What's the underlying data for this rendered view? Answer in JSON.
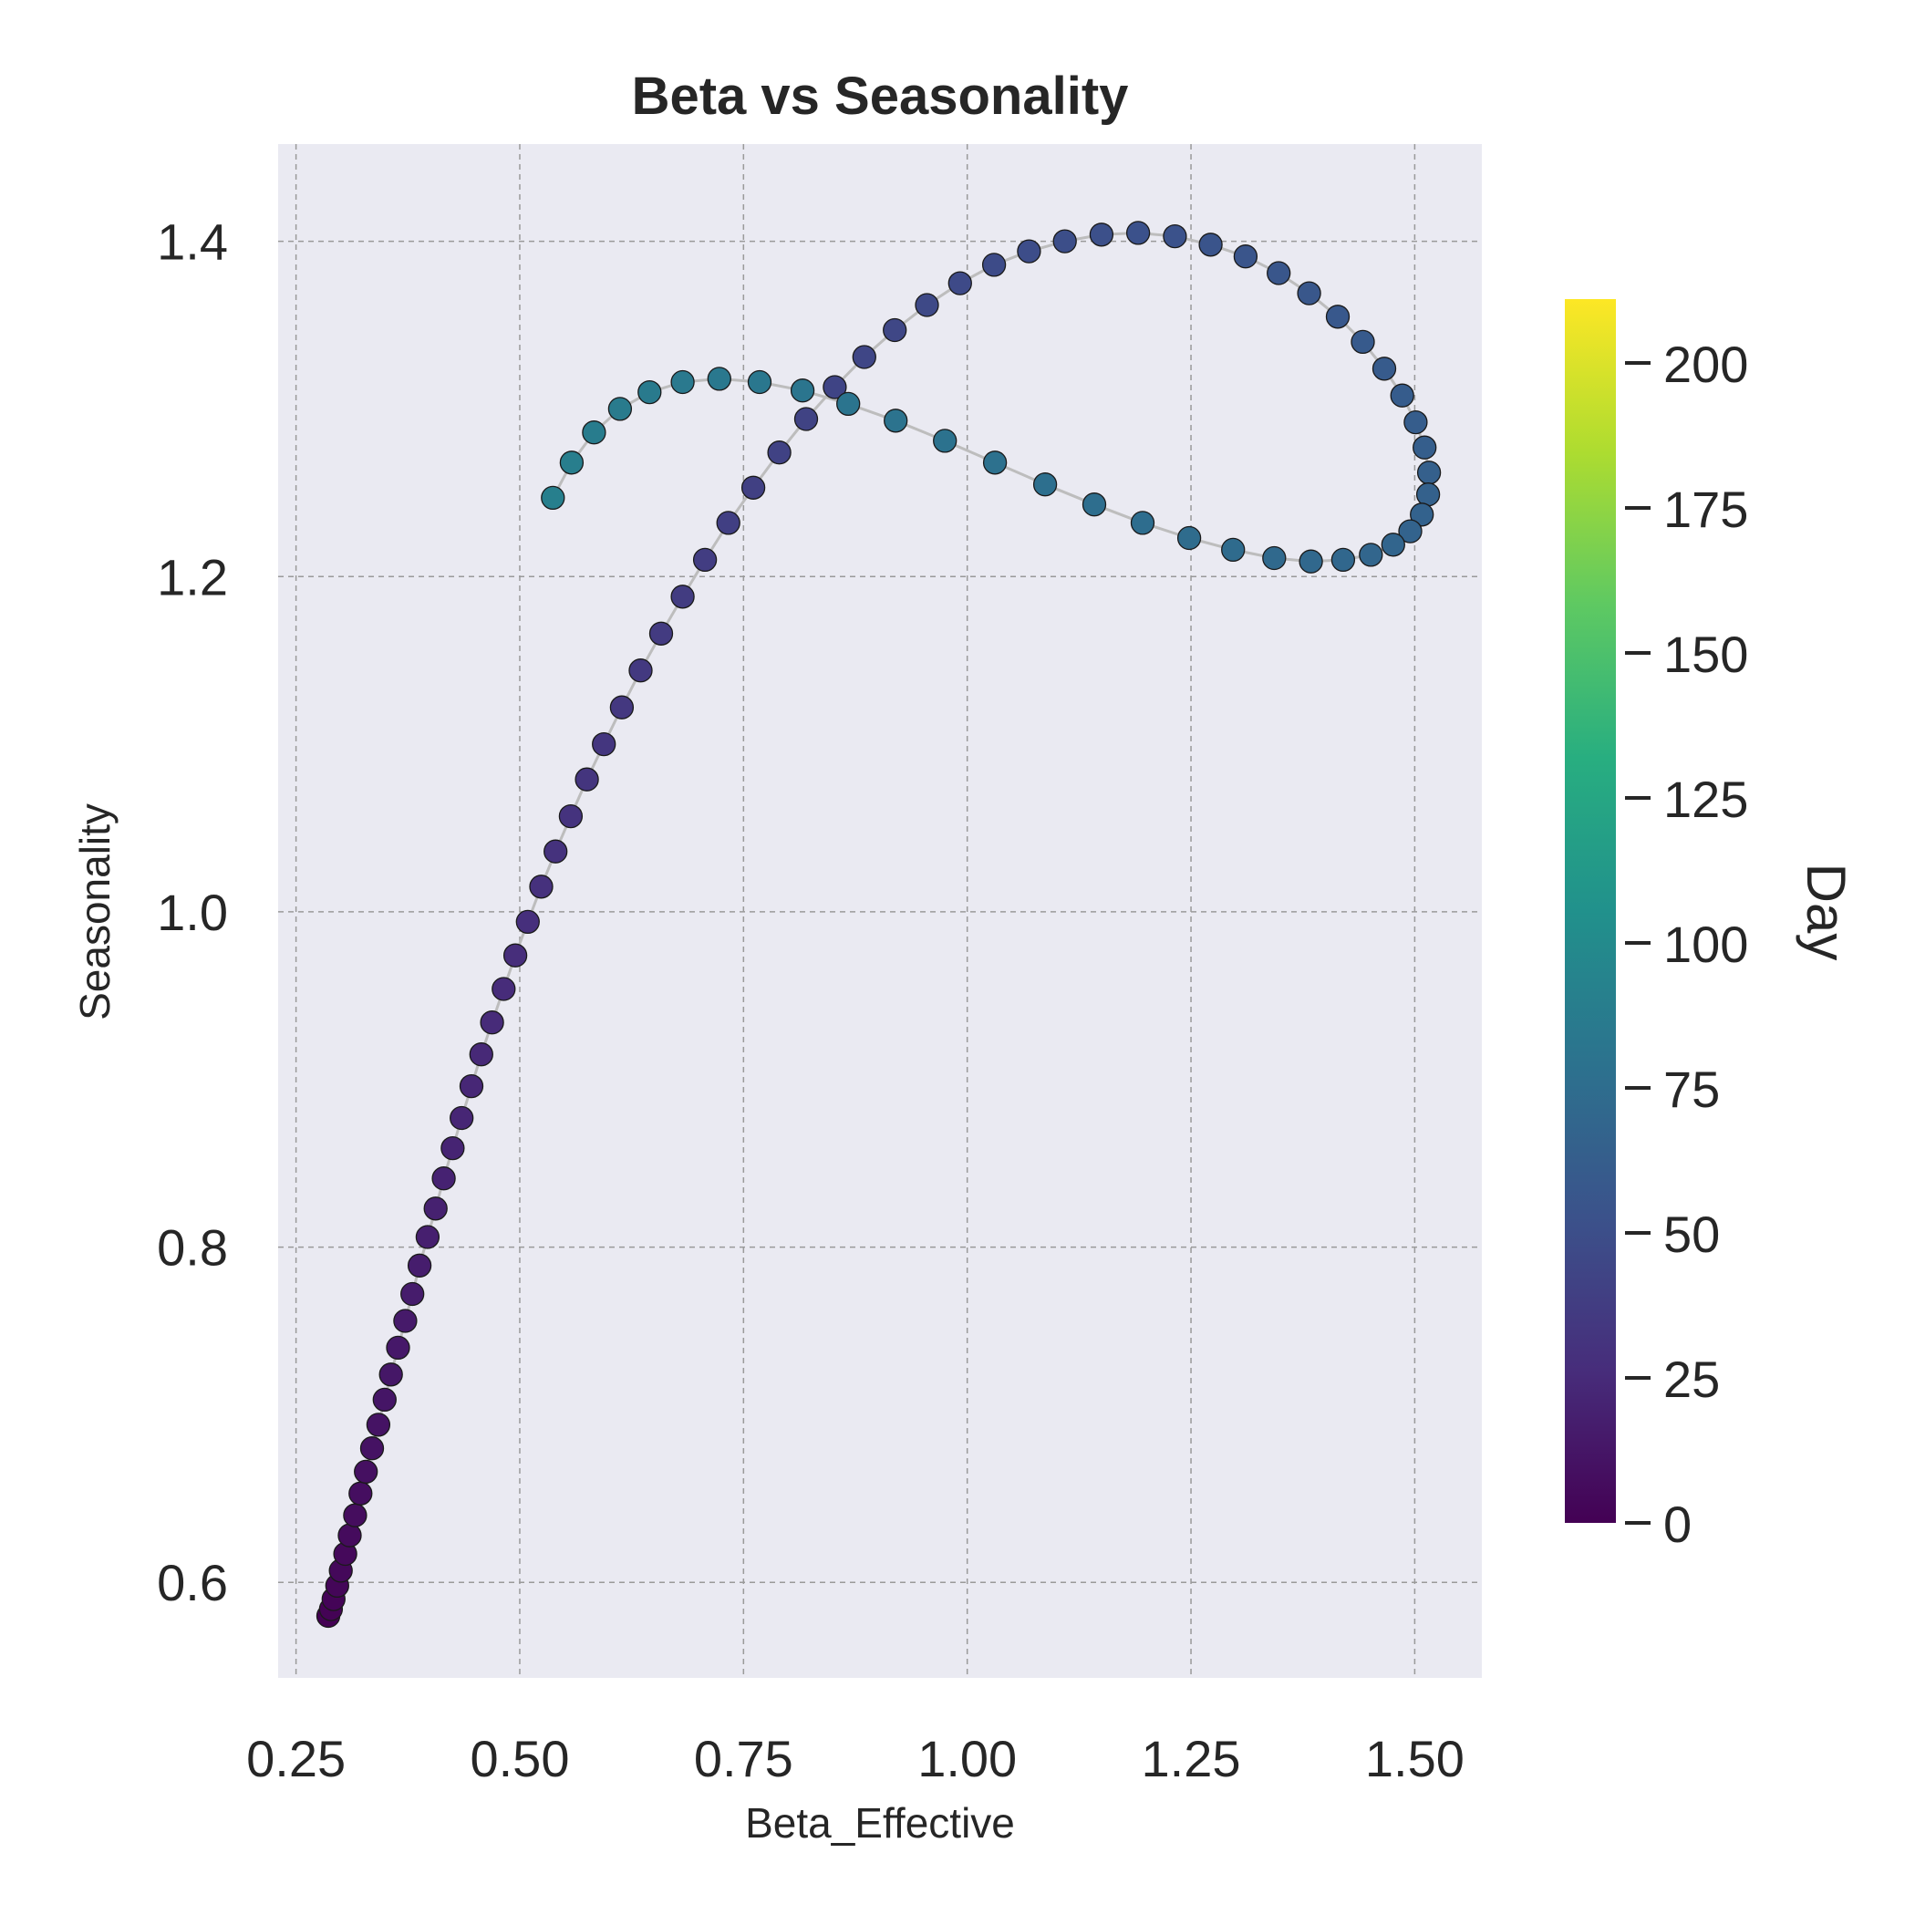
{
  "chart_data": {
    "type": "scatter",
    "title": "Beta vs Seasonality",
    "xlabel": "Beta_Effective",
    "ylabel": "Seasonality",
    "xlim": [
      0.23,
      1.575
    ],
    "ylim": [
      0.543,
      1.458
    ],
    "x_ticks": [
      0.25,
      0.5,
      0.75,
      1.0,
      1.25,
      1.5
    ],
    "x_tick_labels": [
      "0.25",
      "0.50",
      "0.75",
      "1.00",
      "1.25",
      "1.50"
    ],
    "y_ticks": [
      0.6,
      0.8,
      1.0,
      1.2,
      1.4
    ],
    "y_tick_labels": [
      "0.6",
      "0.8",
      "1.0",
      "1.2",
      "1.4"
    ],
    "grid": true,
    "colorbar": {
      "label": "Day",
      "colormap": "viridis",
      "range": [
        0,
        211
      ],
      "ticks": [
        0,
        25,
        50,
        75,
        100,
        125,
        150,
        175,
        200
      ],
      "tick_labels": [
        "0",
        "25",
        "50",
        "75",
        "100",
        "125",
        "150",
        "175",
        "200"
      ]
    },
    "line_color": "#bdbdbd",
    "marker_edge_color": "#1a1a1a",
    "plot_background": "#eaeaf2",
    "series": [
      {
        "points": [
          {
            "x": 0.286,
            "y": 0.58,
            "day": 0
          },
          {
            "x": 0.289,
            "y": 0.584,
            "day": 1
          },
          {
            "x": 0.292,
            "y": 0.59,
            "day": 2
          },
          {
            "x": 0.296,
            "y": 0.598,
            "day": 3
          },
          {
            "x": 0.3,
            "y": 0.607,
            "day": 4
          },
          {
            "x": 0.305,
            "y": 0.617,
            "day": 5
          },
          {
            "x": 0.31,
            "y": 0.628,
            "day": 6
          },
          {
            "x": 0.316,
            "y": 0.64,
            "day": 7
          },
          {
            "x": 0.322,
            "y": 0.653,
            "day": 8
          },
          {
            "x": 0.328,
            "y": 0.666,
            "day": 9
          },
          {
            "x": 0.335,
            "y": 0.68,
            "day": 10
          },
          {
            "x": 0.342,
            "y": 0.694,
            "day": 11
          },
          {
            "x": 0.349,
            "y": 0.709,
            "day": 12
          },
          {
            "x": 0.356,
            "y": 0.724,
            "day": 13
          },
          {
            "x": 0.364,
            "y": 0.74,
            "day": 14
          },
          {
            "x": 0.372,
            "y": 0.756,
            "day": 15
          },
          {
            "x": 0.38,
            "y": 0.772,
            "day": 16
          },
          {
            "x": 0.388,
            "y": 0.789,
            "day": 17
          },
          {
            "x": 0.397,
            "y": 0.806,
            "day": 18
          },
          {
            "x": 0.406,
            "y": 0.823,
            "day": 19
          },
          {
            "x": 0.415,
            "y": 0.841,
            "day": 20
          },
          {
            "x": 0.425,
            "y": 0.859,
            "day": 21
          },
          {
            "x": 0.435,
            "y": 0.877,
            "day": 22
          },
          {
            "x": 0.446,
            "y": 0.896,
            "day": 23
          },
          {
            "x": 0.457,
            "y": 0.915,
            "day": 24
          },
          {
            "x": 0.469,
            "y": 0.934,
            "day": 25
          },
          {
            "x": 0.482,
            "y": 0.954,
            "day": 26
          },
          {
            "x": 0.495,
            "y": 0.974,
            "day": 27
          },
          {
            "x": 0.509,
            "y": 0.994,
            "day": 28
          },
          {
            "x": 0.524,
            "y": 1.015,
            "day": 29
          },
          {
            "x": 0.54,
            "y": 1.036,
            "day": 30
          },
          {
            "x": 0.557,
            "y": 1.057,
            "day": 31
          },
          {
            "x": 0.575,
            "y": 1.079,
            "day": 32
          },
          {
            "x": 0.594,
            "y": 1.1,
            "day": 33
          },
          {
            "x": 0.614,
            "y": 1.122,
            "day": 34
          },
          {
            "x": 0.635,
            "y": 1.144,
            "day": 35
          },
          {
            "x": 0.658,
            "y": 1.166,
            "day": 36
          },
          {
            "x": 0.682,
            "y": 1.188,
            "day": 37
          },
          {
            "x": 0.707,
            "y": 1.21,
            "day": 38
          },
          {
            "x": 0.733,
            "y": 1.232,
            "day": 39
          },
          {
            "x": 0.761,
            "y": 1.253,
            "day": 40
          },
          {
            "x": 0.79,
            "y": 1.274,
            "day": 41
          },
          {
            "x": 0.82,
            "y": 1.294,
            "day": 42
          },
          {
            "x": 0.852,
            "y": 1.313,
            "day": 43
          },
          {
            "x": 0.885,
            "y": 1.331,
            "day": 44
          },
          {
            "x": 0.919,
            "y": 1.347,
            "day": 45
          },
          {
            "x": 0.955,
            "y": 1.362,
            "day": 46
          },
          {
            "x": 0.992,
            "y": 1.375,
            "day": 47
          },
          {
            "x": 1.03,
            "y": 1.386,
            "day": 48
          },
          {
            "x": 1.069,
            "y": 1.394,
            "day": 49
          },
          {
            "x": 1.109,
            "y": 1.4,
            "day": 50
          },
          {
            "x": 1.15,
            "y": 1.404,
            "day": 51
          },
          {
            "x": 1.191,
            "y": 1.405,
            "day": 52
          },
          {
            "x": 1.232,
            "y": 1.403,
            "day": 53
          },
          {
            "x": 1.272,
            "y": 1.398,
            "day": 54
          },
          {
            "x": 1.311,
            "y": 1.391,
            "day": 55
          },
          {
            "x": 1.348,
            "y": 1.381,
            "day": 56
          },
          {
            "x": 1.382,
            "y": 1.369,
            "day": 57
          },
          {
            "x": 1.414,
            "y": 1.355,
            "day": 58
          },
          {
            "x": 1.442,
            "y": 1.34,
            "day": 59
          },
          {
            "x": 1.466,
            "y": 1.324,
            "day": 60
          },
          {
            "x": 1.486,
            "y": 1.308,
            "day": 61
          },
          {
            "x": 1.501,
            "y": 1.292,
            "day": 62
          },
          {
            "x": 1.511,
            "y": 1.277,
            "day": 63
          },
          {
            "x": 1.516,
            "y": 1.262,
            "day": 64
          },
          {
            "x": 1.515,
            "y": 1.249,
            "day": 65
          },
          {
            "x": 1.508,
            "y": 1.237,
            "day": 66
          },
          {
            "x": 1.495,
            "y": 1.227,
            "day": 67
          },
          {
            "x": 1.476,
            "y": 1.219,
            "day": 68
          },
          {
            "x": 1.451,
            "y": 1.213,
            "day": 69
          },
          {
            "x": 1.42,
            "y": 1.21,
            "day": 70
          },
          {
            "x": 1.384,
            "y": 1.209,
            "day": 71
          },
          {
            "x": 1.343,
            "y": 1.211,
            "day": 72
          },
          {
            "x": 1.297,
            "y": 1.216,
            "day": 73
          },
          {
            "x": 1.248,
            "y": 1.223,
            "day": 74
          },
          {
            "x": 1.196,
            "y": 1.232,
            "day": 75
          },
          {
            "x": 1.142,
            "y": 1.243,
            "day": 76
          },
          {
            "x": 1.087,
            "y": 1.255,
            "day": 77
          },
          {
            "x": 1.031,
            "y": 1.268,
            "day": 78
          },
          {
            "x": 0.975,
            "y": 1.281,
            "day": 79
          },
          {
            "x": 0.92,
            "y": 1.293,
            "day": 80
          },
          {
            "x": 0.867,
            "y": 1.303,
            "day": 81
          },
          {
            "x": 0.816,
            "y": 1.311,
            "day": 82
          },
          {
            "x": 0.768,
            "y": 1.316,
            "day": 83
          },
          {
            "x": 0.723,
            "y": 1.318,
            "day": 84
          },
          {
            "x": 0.682,
            "y": 1.316,
            "day": 85
          },
          {
            "x": 0.645,
            "y": 1.31,
            "day": 86
          },
          {
            "x": 0.612,
            "y": 1.3,
            "day": 87
          },
          {
            "x": 0.583,
            "y": 1.286,
            "day": 88
          },
          {
            "x": 0.558,
            "y": 1.268,
            "day": 89
          },
          {
            "x": 0.537,
            "y": 1.247,
            "day": 90
          }
        ]
      }
    ]
  }
}
